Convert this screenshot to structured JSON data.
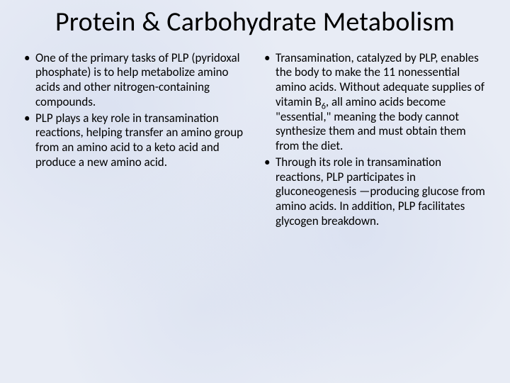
{
  "slide": {
    "title": "Protein & Carbohydrate Metabolism",
    "background_color": "#e8ecf5",
    "text_color": "#000000",
    "title_fontsize": 38,
    "body_fontsize": 17,
    "font_family": "Calibri",
    "columns": [
      {
        "bullets": [
          "One of the primary tasks of PLP (pyridoxal phosphate) is to help metabolize amino acids and other nitrogen-containing compounds.",
          "PLP plays a key role in transamination reactions, helping transfer an amino group from an amino acid to a keto acid and produce a new amino acid."
        ]
      },
      {
        "bullets": [
          "Transamination, catalyzed by PLP, enables the body to make the 11 nonessential amino acids. Without adequate supplies of vitamin B₆, all amino acids become \"essential,\" meaning the body cannot synthesize them and must obtain them from the diet.",
          "Through its role in transamination reactions, PLP participates in gluconeogenesis —producing glucose from amino acids. In addition, PLP facilitates glycogen breakdown."
        ]
      }
    ]
  }
}
